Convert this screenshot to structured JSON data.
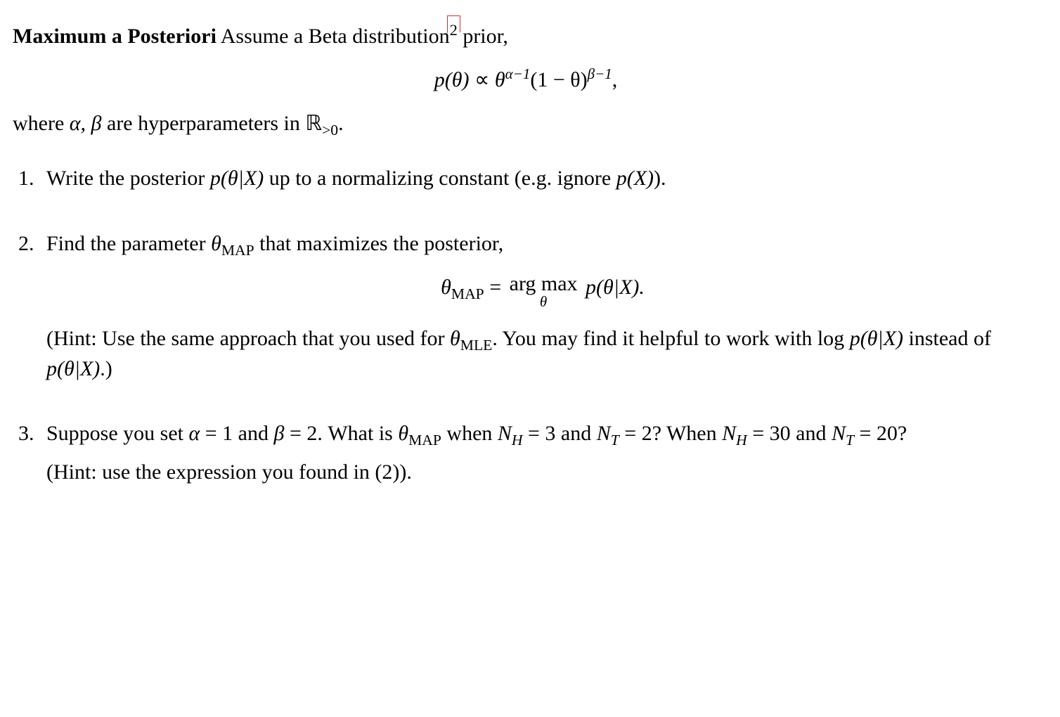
{
  "heading": {
    "bold": "Maximum a Posteriori",
    "rest_a": " Assume a Beta distribution",
    "footnote": "2",
    "rest_b": " prior,"
  },
  "prior_eq": {
    "lhs": "p(θ)",
    "prop": " ∝ ",
    "theta": "θ",
    "exp1": "α−1",
    "mid": "(1 − θ)",
    "exp2": "β−1",
    "tail": ","
  },
  "where": {
    "a": "where ",
    "ab": "α, β",
    "b": " are hyperparameters in ",
    "R": "ℝ",
    "sub": ">0",
    "dot": "."
  },
  "q1": {
    "a": "Write the posterior ",
    "pthx": "p(θ|X)",
    "b": " up to a normalizing constant (e.g. ignore ",
    "pX": "p(X)",
    "c": ")."
  },
  "q2": {
    "a": "Find the parameter ",
    "tmap": "θ",
    "mapsub": "MAP",
    "b": " that maximizes the posterior,",
    "eq_lhs_theta": "θ",
    "eq_lhs_sub": "MAP",
    "eq_eq": " = ",
    "eq_argmax": "arg max",
    "eq_argmax_sub": "θ",
    "eq_rhs": " p(θ|X).",
    "hint_a": "(Hint: Use the same approach that you used for ",
    "hint_tmle": "θ",
    "hint_mlesub": "MLE",
    "hint_b": ". You may find it helpful to work with log ",
    "hint_p1": "p(θ|X)",
    "hint_c": " instead of ",
    "hint_p2": "p(θ|X)",
    "hint_d": ".)"
  },
  "q3": {
    "a": "Suppose you set ",
    "alpha": "α",
    "eq1": " = 1 and ",
    "beta": "β",
    "eq2": " = 2.  What is ",
    "tmap": "θ",
    "mapsub": "MAP",
    "b": " when ",
    "NH": "N",
    "Hsub": "H",
    "eq3": " = 3 and ",
    "NT": "N",
    "Tsub": "T",
    "eq4": " = 2? When ",
    "NH2": "N",
    "Hsub2": "H",
    "eq5": " = 30 and ",
    "NT2": "N",
    "Tsub2": "T",
    "eq6": " = 20?",
    "hint": "(Hint: use the expression you found in (2))."
  }
}
